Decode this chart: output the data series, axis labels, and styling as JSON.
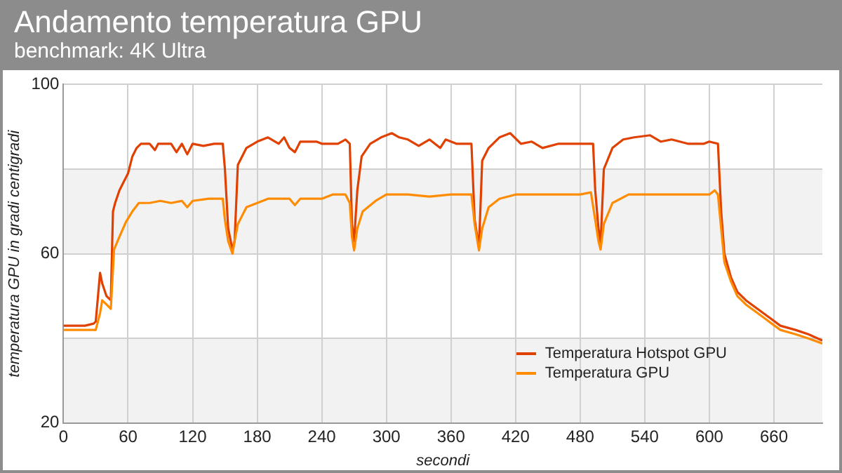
{
  "chart_data": {
    "type": "line",
    "title": "Andamento temperatura GPU",
    "subtitle": "benchmark: 4K Ultra",
    "xlabel": "secondi",
    "ylabel": "temperatura GPU in gradi centigradi",
    "xlim": [
      0,
      705
    ],
    "xticks": [
      0,
      60,
      120,
      180,
      240,
      300,
      360,
      420,
      480,
      540,
      600,
      660
    ],
    "ylim": [
      20,
      100
    ],
    "yticks": [
      20,
      {
        "value": 40,
        "label": null
      },
      60,
      {
        "value": 80,
        "label": null
      },
      100
    ],
    "grid": true,
    "legend": "bottom right",
    "marker": "none",
    "line_style": "solid",
    "series": [
      {
        "name": "Temperatura Hotspot GPU",
        "color": "#e04000",
        "x": [
          0,
          10,
          20,
          28,
          30,
          34,
          36,
          40,
          44,
          46,
          48,
          52,
          56,
          60,
          64,
          68,
          72,
          80,
          85,
          88,
          100,
          105,
          110,
          115,
          120,
          130,
          140,
          148,
          150,
          153,
          157,
          159,
          162,
          170,
          180,
          190,
          200,
          205,
          210,
          215,
          220,
          235,
          240,
          255,
          262,
          266,
          268,
          270,
          273,
          277,
          285,
          295,
          305,
          312,
          320,
          330,
          340,
          350,
          355,
          365,
          375,
          379,
          382,
          386,
          389,
          395,
          405,
          415,
          425,
          435,
          445,
          460,
          480,
          492,
          494,
          497,
          499,
          502,
          510,
          520,
          530,
          545,
          555,
          565,
          580,
          595,
          600,
          608,
          611,
          614,
          620,
          626,
          634,
          642,
          650,
          658,
          666,
          680,
          692,
          705
        ],
        "values": [
          43,
          43,
          43,
          43.5,
          44,
          55.5,
          53,
          50,
          49,
          70,
          72,
          75,
          77,
          79,
          83,
          85,
          86,
          86,
          84.5,
          86,
          86,
          84,
          86,
          83.5,
          86,
          85.5,
          86,
          86,
          80,
          66,
          61,
          63,
          81,
          85,
          86.5,
          87.5,
          86,
          87.5,
          85,
          84,
          86.5,
          86.5,
          86,
          86,
          87,
          86,
          67,
          63,
          75,
          83,
          86,
          87.5,
          88.5,
          87.5,
          87,
          85.5,
          87,
          85,
          87,
          86,
          86,
          86,
          68,
          61.5,
          82,
          85,
          87.5,
          88.5,
          86,
          86.5,
          85,
          86,
          86,
          86,
          75,
          66,
          62.5,
          80,
          85,
          87,
          87.5,
          88,
          86.5,
          87,
          86,
          86,
          86.5,
          86,
          70,
          60,
          54.5,
          51,
          49,
          47.5,
          46,
          44.5,
          43,
          42,
          41,
          39.5
        ]
      },
      {
        "name": "Temperatura GPU",
        "color": "#ff8c00",
        "x": [
          0,
          30,
          34,
          36,
          40,
          44,
          47,
          52,
          58,
          64,
          70,
          80,
          90,
          100,
          110,
          115,
          120,
          135,
          148,
          150,
          153,
          157,
          159,
          162,
          170,
          180,
          190,
          210,
          215,
          220,
          240,
          250,
          262,
          266,
          268,
          270,
          273,
          278,
          290,
          300,
          320,
          340,
          360,
          379,
          382,
          386,
          389,
          395,
          405,
          420,
          440,
          460,
          480,
          490,
          494,
          497,
          499,
          502,
          510,
          525,
          545,
          560,
          580,
          600,
          605,
          608,
          611,
          614,
          620,
          626,
          634,
          642,
          650,
          658,
          666,
          680,
          692,
          705
        ],
        "values": [
          42,
          42,
          46,
          49,
          48,
          47,
          61,
          64,
          67.5,
          70,
          72,
          72,
          72.5,
          72,
          72.5,
          71,
          72.5,
          73,
          73,
          68,
          63,
          60,
          63,
          67,
          71,
          72,
          73,
          73,
          71.5,
          73,
          73,
          74,
          74,
          72,
          64,
          60.8,
          66,
          70,
          72.5,
          74,
          74,
          73.5,
          74,
          74,
          67,
          60.8,
          66,
          71,
          73,
          74,
          74,
          74,
          74,
          74.5,
          68,
          63,
          61,
          67,
          72,
          74,
          74,
          74,
          74,
          74,
          75,
          74,
          66,
          58,
          53.5,
          50,
          48,
          46.5,
          45,
          43.5,
          42,
          41,
          40,
          38.8
        ]
      }
    ]
  }
}
